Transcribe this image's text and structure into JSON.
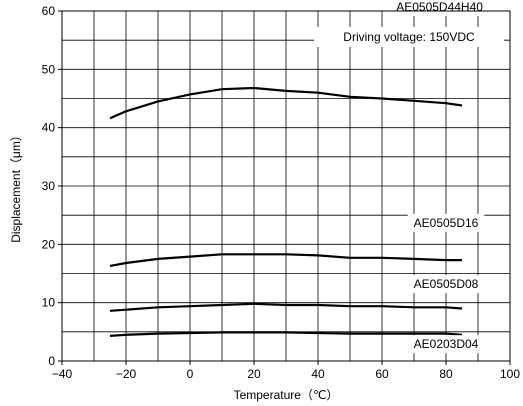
{
  "chart_data": {
    "type": "line",
    "xlabel": "Temperature（℃）",
    "ylabel": "Displacement（μm）",
    "xlim": [
      -40,
      100
    ],
    "ylim": [
      0,
      60
    ],
    "xticks": [
      -40,
      -20,
      0,
      20,
      40,
      60,
      80,
      100
    ],
    "xtick_labels": [
      "−40",
      "−20",
      "0",
      "20",
      "40",
      "60",
      "80",
      "100"
    ],
    "yticks": [
      0,
      10,
      20,
      30,
      40,
      50,
      60
    ],
    "ytick_labels": [
      "0",
      "10",
      "20",
      "30",
      "40",
      "50",
      "60"
    ],
    "grid": true,
    "annotation": "Driving voltage: 150VDC",
    "series": [
      {
        "name": "AE0505D44H40",
        "x": [
          -25,
          -20,
          -10,
          0,
          10,
          20,
          30,
          40,
          50,
          60,
          70,
          80,
          85
        ],
        "y": [
          41.6,
          42.8,
          44.5,
          45.7,
          46.6,
          46.8,
          46.3,
          46.0,
          45.3,
          45.0,
          44.6,
          44.2,
          43.8
        ]
      },
      {
        "name": "AE0505D16",
        "x": [
          -25,
          -20,
          -10,
          0,
          10,
          20,
          30,
          40,
          50,
          60,
          70,
          80,
          85
        ],
        "y": [
          16.3,
          16.8,
          17.5,
          17.9,
          18.3,
          18.3,
          18.3,
          18.1,
          17.7,
          17.7,
          17.5,
          17.3,
          17.3
        ]
      },
      {
        "name": "AE0505D08",
        "x": [
          -25,
          -20,
          -10,
          0,
          10,
          20,
          30,
          40,
          50,
          60,
          70,
          80,
          85
        ],
        "y": [
          8.6,
          8.8,
          9.2,
          9.4,
          9.6,
          9.8,
          9.6,
          9.6,
          9.4,
          9.4,
          9.2,
          9.2,
          9.0
        ]
      },
      {
        "name": "AE0203D04",
        "x": [
          -25,
          -20,
          -10,
          0,
          10,
          20,
          30,
          40,
          50,
          60,
          70,
          80,
          85
        ],
        "y": [
          4.3,
          4.5,
          4.7,
          4.8,
          4.9,
          4.9,
          4.9,
          4.8,
          4.7,
          4.7,
          4.7,
          4.7,
          4.5
        ]
      }
    ]
  }
}
